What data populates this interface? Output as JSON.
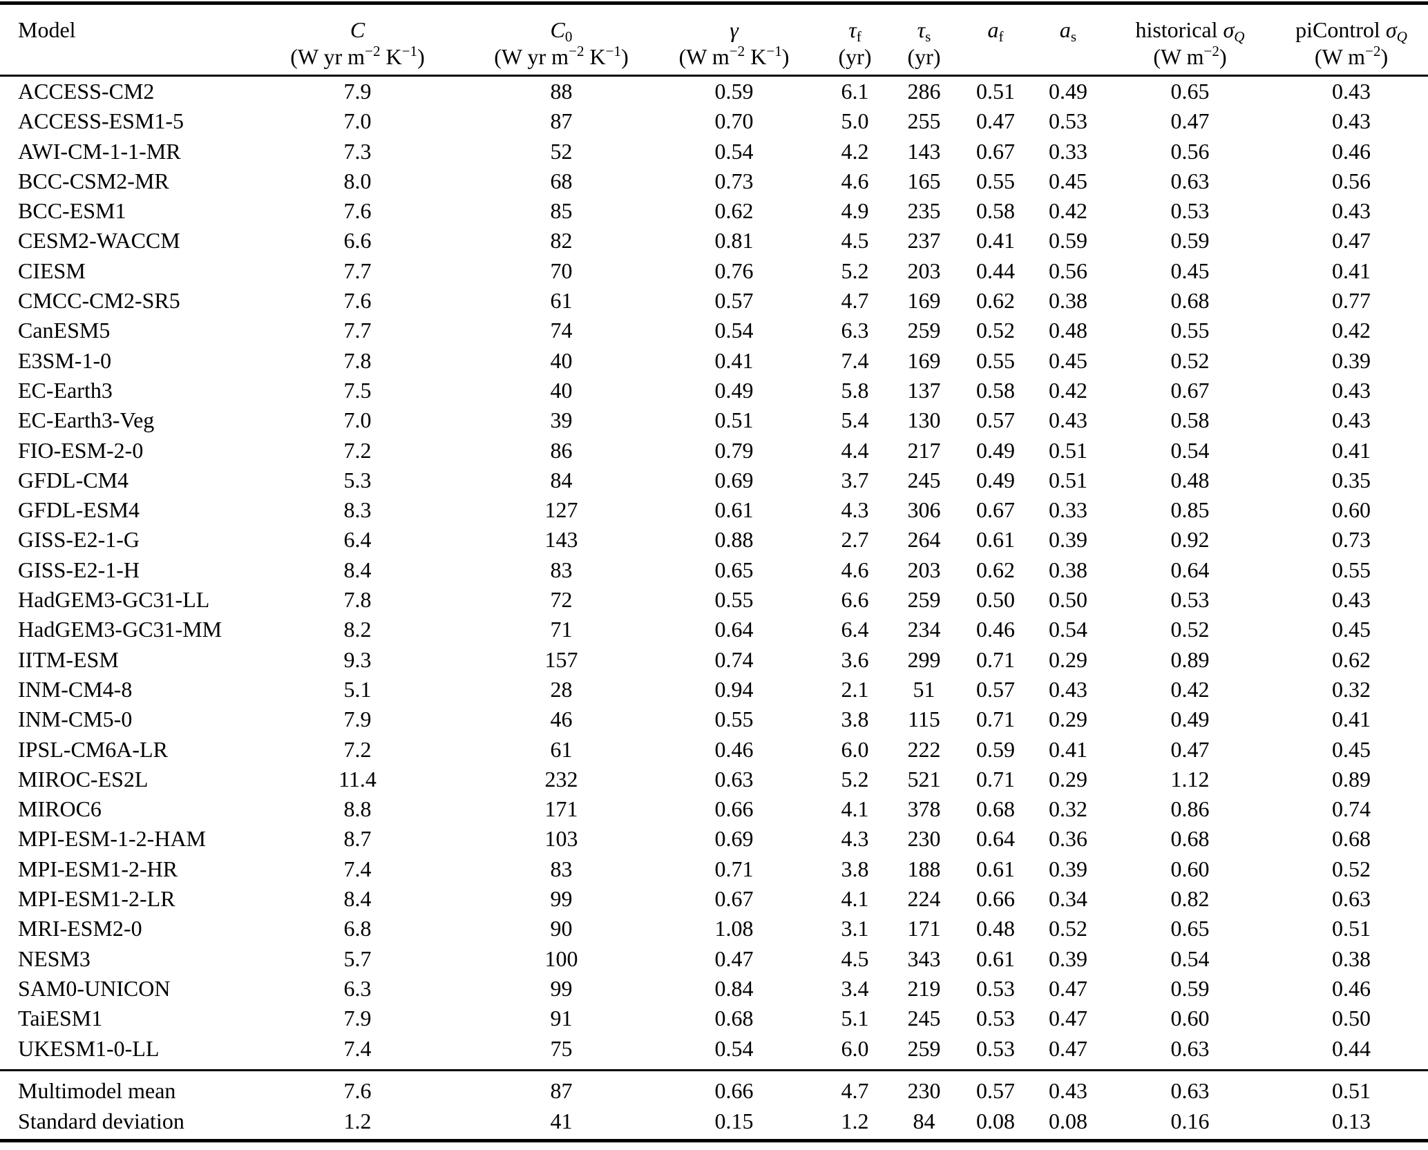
{
  "table": {
    "columns": [
      {
        "id": "model",
        "header_line1": [
          {
            "text": "Model"
          }
        ],
        "header_line2": []
      },
      {
        "id": "C",
        "header_line1": [
          {
            "text": "C",
            "italic": true
          }
        ],
        "header_line2": [
          {
            "text": "(W yr m"
          },
          {
            "text": "−2",
            "pos": "sup"
          },
          {
            "text": " K"
          },
          {
            "text": "−1",
            "pos": "sup"
          },
          {
            "text": ")"
          }
        ]
      },
      {
        "id": "C0",
        "header_line1": [
          {
            "text": "C",
            "italic": true
          },
          {
            "text": "0",
            "pos": "sub"
          }
        ],
        "header_line2": [
          {
            "text": "(W yr m"
          },
          {
            "text": "−2",
            "pos": "sup"
          },
          {
            "text": " K"
          },
          {
            "text": "−1",
            "pos": "sup"
          },
          {
            "text": ")"
          }
        ]
      },
      {
        "id": "gamma",
        "header_line1": [
          {
            "text": "γ",
            "italic": true
          }
        ],
        "header_line2": [
          {
            "text": "(W m"
          },
          {
            "text": "−2",
            "pos": "sup"
          },
          {
            "text": " K"
          },
          {
            "text": "−1",
            "pos": "sup"
          },
          {
            "text": ")"
          }
        ]
      },
      {
        "id": "tau_f",
        "header_line1": [
          {
            "text": "τ",
            "italic": true
          },
          {
            "text": "f",
            "pos": "sub"
          }
        ],
        "header_line2": [
          {
            "text": "(yr)"
          }
        ]
      },
      {
        "id": "tau_s",
        "header_line1": [
          {
            "text": "τ",
            "italic": true
          },
          {
            "text": "s",
            "pos": "sub"
          }
        ],
        "header_line2": [
          {
            "text": "(yr)"
          }
        ]
      },
      {
        "id": "a_f",
        "header_line1": [
          {
            "text": "a",
            "italic": true
          },
          {
            "text": "f",
            "pos": "sub"
          }
        ],
        "header_line2": []
      },
      {
        "id": "a_s",
        "header_line1": [
          {
            "text": "a",
            "italic": true
          },
          {
            "text": "s",
            "pos": "sub"
          }
        ],
        "header_line2": []
      },
      {
        "id": "historical_sigma_Q",
        "header_line1": [
          {
            "text": "historical "
          },
          {
            "text": "σ",
            "italic": true
          },
          {
            "text": "Q",
            "pos": "sub",
            "italic": true
          }
        ],
        "header_line2": [
          {
            "text": "(W m"
          },
          {
            "text": "−2",
            "pos": "sup"
          },
          {
            "text": ")"
          }
        ]
      },
      {
        "id": "piControl_sigma_Q",
        "header_line1": [
          {
            "text": "piControl "
          },
          {
            "text": "σ",
            "italic": true
          },
          {
            "text": "Q",
            "pos": "sub",
            "italic": true
          }
        ],
        "header_line2": [
          {
            "text": "(W m"
          },
          {
            "text": "−2",
            "pos": "sup"
          },
          {
            "text": ")"
          }
        ]
      }
    ],
    "rows": [
      [
        "ACCESS-CM2",
        "7.9",
        "88",
        "0.59",
        "6.1",
        "286",
        "0.51",
        "0.49",
        "0.65",
        "0.43"
      ],
      [
        "ACCESS-ESM1-5",
        "7.0",
        "87",
        "0.70",
        "5.0",
        "255",
        "0.47",
        "0.53",
        "0.47",
        "0.43"
      ],
      [
        "AWI-CM-1-1-MR",
        "7.3",
        "52",
        "0.54",
        "4.2",
        "143",
        "0.67",
        "0.33",
        "0.56",
        "0.46"
      ],
      [
        "BCC-CSM2-MR",
        "8.0",
        "68",
        "0.73",
        "4.6",
        "165",
        "0.55",
        "0.45",
        "0.63",
        "0.56"
      ],
      [
        "BCC-ESM1",
        "7.6",
        "85",
        "0.62",
        "4.9",
        "235",
        "0.58",
        "0.42",
        "0.53",
        "0.43"
      ],
      [
        "CESM2-WACCM",
        "6.6",
        "82",
        "0.81",
        "4.5",
        "237",
        "0.41",
        "0.59",
        "0.59",
        "0.47"
      ],
      [
        "CIESM",
        "7.7",
        "70",
        "0.76",
        "5.2",
        "203",
        "0.44",
        "0.56",
        "0.45",
        "0.41"
      ],
      [
        "CMCC-CM2-SR5",
        "7.6",
        "61",
        "0.57",
        "4.7",
        "169",
        "0.62",
        "0.38",
        "0.68",
        "0.77"
      ],
      [
        "CanESM5",
        "7.7",
        "74",
        "0.54",
        "6.3",
        "259",
        "0.52",
        "0.48",
        "0.55",
        "0.42"
      ],
      [
        "E3SM-1-0",
        "7.8",
        "40",
        "0.41",
        "7.4",
        "169",
        "0.55",
        "0.45",
        "0.52",
        "0.39"
      ],
      [
        "EC-Earth3",
        "7.5",
        "40",
        "0.49",
        "5.8",
        "137",
        "0.58",
        "0.42",
        "0.67",
        "0.43"
      ],
      [
        "EC-Earth3-Veg",
        "7.0",
        "39",
        "0.51",
        "5.4",
        "130",
        "0.57",
        "0.43",
        "0.58",
        "0.43"
      ],
      [
        "FIO-ESM-2-0",
        "7.2",
        "86",
        "0.79",
        "4.4",
        "217",
        "0.49",
        "0.51",
        "0.54",
        "0.41"
      ],
      [
        "GFDL-CM4",
        "5.3",
        "84",
        "0.69",
        "3.7",
        "245",
        "0.49",
        "0.51",
        "0.48",
        "0.35"
      ],
      [
        "GFDL-ESM4",
        "8.3",
        "127",
        "0.61",
        "4.3",
        "306",
        "0.67",
        "0.33",
        "0.85",
        "0.60"
      ],
      [
        "GISS-E2-1-G",
        "6.4",
        "143",
        "0.88",
        "2.7",
        "264",
        "0.61",
        "0.39",
        "0.92",
        "0.73"
      ],
      [
        "GISS-E2-1-H",
        "8.4",
        "83",
        "0.65",
        "4.6",
        "203",
        "0.62",
        "0.38",
        "0.64",
        "0.55"
      ],
      [
        "HadGEM3-GC31-LL",
        "7.8",
        "72",
        "0.55",
        "6.6",
        "259",
        "0.50",
        "0.50",
        "0.53",
        "0.43"
      ],
      [
        "HadGEM3-GC31-MM",
        "8.2",
        "71",
        "0.64",
        "6.4",
        "234",
        "0.46",
        "0.54",
        "0.52",
        "0.45"
      ],
      [
        "IITM-ESM",
        "9.3",
        "157",
        "0.74",
        "3.6",
        "299",
        "0.71",
        "0.29",
        "0.89",
        "0.62"
      ],
      [
        "INM-CM4-8",
        "5.1",
        "28",
        "0.94",
        "2.1",
        "51",
        "0.57",
        "0.43",
        "0.42",
        "0.32"
      ],
      [
        "INM-CM5-0",
        "7.9",
        "46",
        "0.55",
        "3.8",
        "115",
        "0.71",
        "0.29",
        "0.49",
        "0.41"
      ],
      [
        "IPSL-CM6A-LR",
        "7.2",
        "61",
        "0.46",
        "6.0",
        "222",
        "0.59",
        "0.41",
        "0.47",
        "0.45"
      ],
      [
        "MIROC-ES2L",
        "11.4",
        "232",
        "0.63",
        "5.2",
        "521",
        "0.71",
        "0.29",
        "1.12",
        "0.89"
      ],
      [
        "MIROC6",
        "8.8",
        "171",
        "0.66",
        "4.1",
        "378",
        "0.68",
        "0.32",
        "0.86",
        "0.74"
      ],
      [
        "MPI-ESM-1-2-HAM",
        "8.7",
        "103",
        "0.69",
        "4.3",
        "230",
        "0.64",
        "0.36",
        "0.68",
        "0.68"
      ],
      [
        "MPI-ESM1-2-HR",
        "7.4",
        "83",
        "0.71",
        "3.8",
        "188",
        "0.61",
        "0.39",
        "0.60",
        "0.52"
      ],
      [
        "MPI-ESM1-2-LR",
        "8.4",
        "99",
        "0.67",
        "4.1",
        "224",
        "0.66",
        "0.34",
        "0.82",
        "0.63"
      ],
      [
        "MRI-ESM2-0",
        "6.8",
        "90",
        "1.08",
        "3.1",
        "171",
        "0.48",
        "0.52",
        "0.65",
        "0.51"
      ],
      [
        "NESM3",
        "5.7",
        "100",
        "0.47",
        "4.5",
        "343",
        "0.61",
        "0.39",
        "0.54",
        "0.38"
      ],
      [
        "SAM0-UNICON",
        "6.3",
        "99",
        "0.84",
        "3.4",
        "219",
        "0.53",
        "0.47",
        "0.59",
        "0.46"
      ],
      [
        "TaiESM1",
        "7.9",
        "91",
        "0.68",
        "5.1",
        "245",
        "0.53",
        "0.47",
        "0.60",
        "0.50"
      ],
      [
        "UKESM1-0-LL",
        "7.4",
        "75",
        "0.54",
        "6.0",
        "259",
        "0.53",
        "0.47",
        "0.63",
        "0.44"
      ]
    ],
    "summary_rows": [
      [
        "Multimodel mean",
        "7.6",
        "87",
        "0.66",
        "4.7",
        "230",
        "0.57",
        "0.43",
        "0.63",
        "0.51"
      ],
      [
        "Standard deviation",
        "1.2",
        "41",
        "0.15",
        "1.2",
        "84",
        "0.08",
        "0.08",
        "0.16",
        "0.13"
      ]
    ],
    "colors": {
      "text": "#000000",
      "background": "#ffffff",
      "rule": "#000000"
    }
  }
}
